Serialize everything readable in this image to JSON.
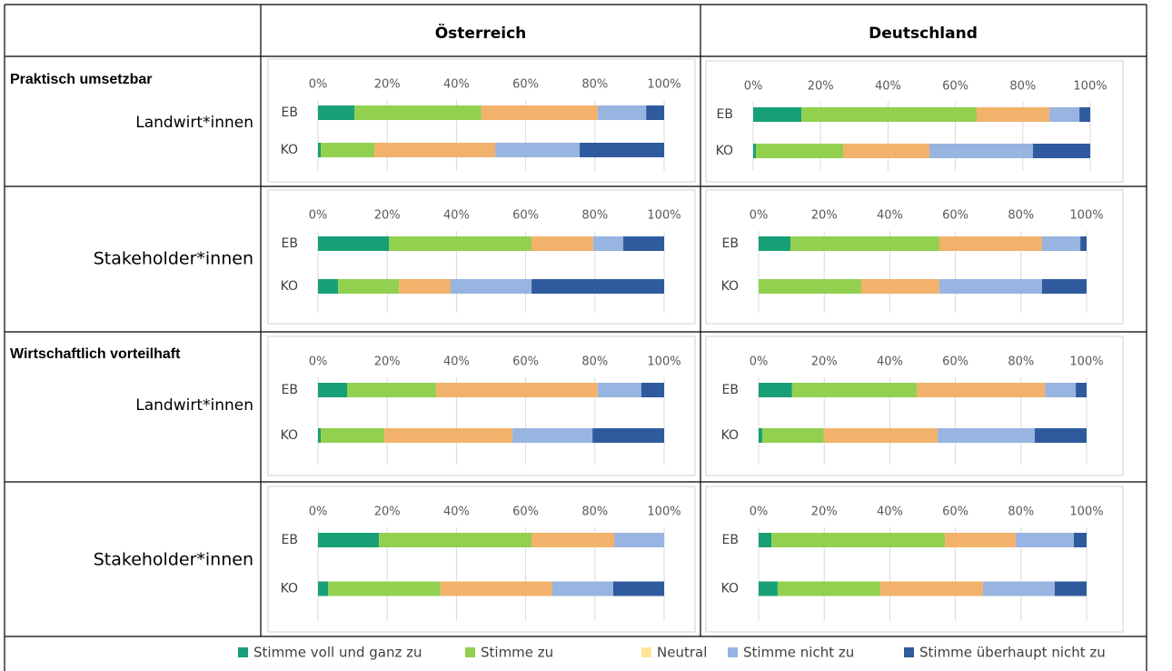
{
  "table": {
    "columns": [
      "Österreich",
      "Deutschland"
    ],
    "rows": [
      {
        "section": "Praktisch umsetzbar",
        "label": "Landwirt*innen"
      },
      {
        "label": "Stakeholder*innen"
      },
      {
        "section": "Wirtschaftlich vorteilhaft",
        "label": "Landwirt*innen"
      },
      {
        "label": "Stakeholder*innen"
      }
    ]
  },
  "legend": [
    {
      "name": "Stimme voll und ganz zu",
      "color": "#17a077"
    },
    {
      "name": "Stimme zu",
      "color": "#92d050"
    },
    {
      "name": "Neutral",
      "color": "#ffe699"
    },
    {
      "name": "Stimme nicht zu",
      "color": "#98b4e0"
    },
    {
      "name": "Stimme überhaupt nicht zu",
      "color": "#2f5b9e"
    }
  ],
  "series_colors": [
    "#17a077",
    "#92d050",
    "#f3b26b",
    "#98b4e0",
    "#2f5b9e"
  ],
  "chart_data": [
    {
      "type": "bar",
      "stacked": true,
      "orientation": "horizontal",
      "categories": [
        "EB",
        "KO"
      ],
      "xlim": [
        0,
        100
      ],
      "xticks": [
        {
          "value": 0,
          "label": "0%"
        },
        {
          "value": 20,
          "label": "20%"
        },
        {
          "value": 40,
          "label": "40%"
        },
        {
          "value": 60,
          "label": "60%"
        },
        {
          "value": 80,
          "label": "80%"
        },
        {
          "value": 100,
          "label": "100%"
        }
      ],
      "series": [
        {
          "values": [
            10.5,
            0.8
          ]
        },
        {
          "values": [
            36.7,
            15.5
          ]
        },
        {
          "values": [
            33.6,
            34.9
          ]
        },
        {
          "values": [
            14,
            24.4
          ]
        },
        {
          "values": [
            5.2,
            24.4
          ]
        }
      ]
    },
    {
      "type": "bar",
      "stacked": true,
      "orientation": "horizontal",
      "categories": [
        "EB",
        "KO"
      ],
      "xlim": [
        0,
        100
      ],
      "xticks": [
        {
          "value": 0,
          "label": "0%"
        },
        {
          "value": 20,
          "label": "20%"
        },
        {
          "value": 40,
          "label": "40%"
        },
        {
          "value": 60,
          "label": "60%"
        },
        {
          "value": 80,
          "label": "80%"
        },
        {
          "value": 100,
          "label": "100%"
        }
      ],
      "series": [
        {
          "values": [
            14.3,
            0.8
          ]
        },
        {
          "values": [
            52,
            25.9
          ]
        },
        {
          "values": [
            21.6,
            25.6
          ]
        },
        {
          "values": [
            8.9,
            30.7
          ]
        },
        {
          "values": [
            3.2,
            17
          ]
        }
      ]
    },
    {
      "type": "bar",
      "stacked": true,
      "orientation": "horizontal",
      "categories": [
        "EB",
        "KO"
      ],
      "xlim": [
        0,
        100
      ],
      "xticks": [
        {
          "value": 0,
          "label": "0%"
        },
        {
          "value": 20,
          "label": "20%"
        },
        {
          "value": 40,
          "label": "40%"
        },
        {
          "value": 60,
          "label": "60%"
        },
        {
          "value": 80,
          "label": "80%"
        },
        {
          "value": 100,
          "label": "100%"
        }
      ],
      "series": [
        {
          "values": [
            20.5,
            5.8
          ]
        },
        {
          "values": [
            41.2,
            17.6
          ]
        },
        {
          "values": [
            17.8,
            14.9
          ]
        },
        {
          "values": [
            8.7,
            23.4
          ]
        },
        {
          "values": [
            11.8,
            38.3
          ]
        }
      ]
    },
    {
      "type": "bar",
      "stacked": true,
      "orientation": "horizontal",
      "categories": [
        "EB",
        "KO"
      ],
      "xlim": [
        0,
        100
      ],
      "xticks": [
        {
          "value": 0,
          "label": "0%"
        },
        {
          "value": 20,
          "label": "20%"
        },
        {
          "value": 40,
          "label": "40%"
        },
        {
          "value": 60,
          "label": "60%"
        },
        {
          "value": 80,
          "label": "80%"
        },
        {
          "value": 100,
          "label": "100%"
        }
      ],
      "series": [
        {
          "values": [
            9.7,
            0
          ]
        },
        {
          "values": [
            45.4,
            31.3
          ]
        },
        {
          "values": [
            31.3,
            23.8
          ]
        },
        {
          "values": [
            11.7,
            31.3
          ]
        },
        {
          "values": [
            1.9,
            13.6
          ]
        }
      ]
    },
    {
      "type": "bar",
      "stacked": true,
      "orientation": "horizontal",
      "categories": [
        "EB",
        "KO"
      ],
      "xlim": [
        0,
        100
      ],
      "xticks": [
        {
          "value": 0,
          "label": "0%"
        },
        {
          "value": 20,
          "label": "20%"
        },
        {
          "value": 40,
          "label": "40%"
        },
        {
          "value": 60,
          "label": "60%"
        },
        {
          "value": 80,
          "label": "80%"
        },
        {
          "value": 100,
          "label": "100%"
        }
      ],
      "series": [
        {
          "values": [
            8.4,
            0.8
          ]
        },
        {
          "values": [
            25.7,
            18.4
          ]
        },
        {
          "values": [
            46.7,
            37
          ]
        },
        {
          "values": [
            12.6,
            23.1
          ]
        },
        {
          "values": [
            6.6,
            20.7
          ]
        }
      ]
    },
    {
      "type": "bar",
      "stacked": true,
      "orientation": "horizontal",
      "categories": [
        "EB",
        "KO"
      ],
      "xlim": [
        0,
        100
      ],
      "xticks": [
        {
          "value": 0,
          "label": "0%"
        },
        {
          "value": 20,
          "label": "20%"
        },
        {
          "value": 40,
          "label": "40%"
        },
        {
          "value": 60,
          "label": "60%"
        },
        {
          "value": 80,
          "label": "80%"
        },
        {
          "value": 100,
          "label": "100%"
        }
      ],
      "series": [
        {
          "values": [
            10.2,
            1.1
          ]
        },
        {
          "values": [
            38,
            18.8
          ]
        },
        {
          "values": [
            39.1,
            34.7
          ]
        },
        {
          "values": [
            9.4,
            29.6
          ]
        },
        {
          "values": [
            3.3,
            15.8
          ]
        }
      ]
    },
    {
      "type": "bar",
      "stacked": true,
      "orientation": "horizontal",
      "categories": [
        "EB",
        "KO"
      ],
      "xlim": [
        0,
        100
      ],
      "xticks": [
        {
          "value": 0,
          "label": "0%"
        },
        {
          "value": 20,
          "label": "20%"
        },
        {
          "value": 40,
          "label": "40%"
        },
        {
          "value": 60,
          "label": "60%"
        },
        {
          "value": 80,
          "label": "80%"
        },
        {
          "value": 100,
          "label": "100%"
        }
      ],
      "series": [
        {
          "values": [
            17.6,
            2.9
          ]
        },
        {
          "values": [
            44.1,
            32.5
          ]
        },
        {
          "values": [
            23.9,
            32.3
          ]
        },
        {
          "values": [
            14.4,
            17.6
          ]
        },
        {
          "values": [
            0,
            14.7
          ]
        }
      ]
    },
    {
      "type": "bar",
      "stacked": true,
      "orientation": "horizontal",
      "categories": [
        "EB",
        "KO"
      ],
      "xlim": [
        0,
        100
      ],
      "xticks": [
        {
          "value": 0,
          "label": "0%"
        },
        {
          "value": 20,
          "label": "20%"
        },
        {
          "value": 40,
          "label": "40%"
        },
        {
          "value": 60,
          "label": "60%"
        },
        {
          "value": 80,
          "label": "80%"
        },
        {
          "value": 100,
          "label": "100%"
        }
      ],
      "series": [
        {
          "values": [
            3.9,
            5.8
          ]
        },
        {
          "values": [
            52.9,
            31.3
          ]
        },
        {
          "values": [
            21.6,
            31.3
          ]
        },
        {
          "values": [
            17.7,
            21.9
          ]
        },
        {
          "values": [
            3.9,
            9.7
          ]
        }
      ]
    }
  ]
}
